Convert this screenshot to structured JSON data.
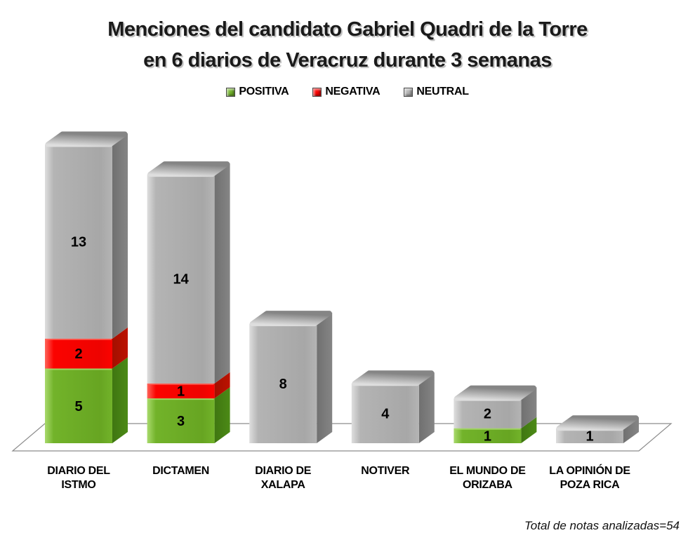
{
  "title": {
    "line1": "Menciones del candidato Gabriel Quadri de la Torre",
    "line2": "en 6 diarios de Veracruz durante 3 semanas"
  },
  "chart_data": {
    "type": "bar",
    "subtype": "stacked-3d",
    "title": "Menciones del candidato Gabriel Quadri de la Torre en 6 diarios de Veracruz durante 3 semanas",
    "legend_position": "top",
    "value_labels": true,
    "grid": false,
    "background": "#ffffff",
    "floor_stroke": "#8c8c8c",
    "categories": [
      "DIARIO DEL ISTMO",
      "DICTAMEN",
      "DIARIO DE XALAPA",
      "NOTIVER",
      "EL MUNDO DE ORIZABA",
      "LA OPINIÓN DE POZA RICA"
    ],
    "category_label_lines": [
      [
        "DIARIO DEL",
        "ISTMO"
      ],
      [
        "DICTAMEN"
      ],
      [
        "DIARIO DE",
        "XALAPA"
      ],
      [
        "NOTIVER"
      ],
      [
        "EL MUNDO DE",
        "ORIZABA"
      ],
      [
        "LA OPINIÓN DE",
        "POZA RICA"
      ]
    ],
    "series": [
      {
        "name": "POSITIVA",
        "values": [
          5,
          3,
          0,
          0,
          1,
          0
        ],
        "colors": {
          "front": "#72b32a",
          "front_light": "#a9da6d",
          "front_dark": "#67a522",
          "side": "#4c8a16",
          "side_dark": "#3f7611"
        }
      },
      {
        "name": "NEGATIVA",
        "values": [
          2,
          1,
          0,
          0,
          0,
          0
        ],
        "colors": {
          "front": "#fb0300",
          "front_light": "#ff655a",
          "front_dark": "#ee0300",
          "side": "#bc1200",
          "side_dark": "#a30f00"
        }
      },
      {
        "name": "NEUTRAL",
        "values": [
          13,
          14,
          8,
          4,
          2,
          1
        ],
        "colors": {
          "front": "#b4b4b4",
          "front_light": "#dedede",
          "front_dark": "#a7a7a7",
          "side": "#858585",
          "side_dark": "#707070"
        }
      }
    ],
    "note": "Total de notas analizadas=54",
    "total": 54
  }
}
